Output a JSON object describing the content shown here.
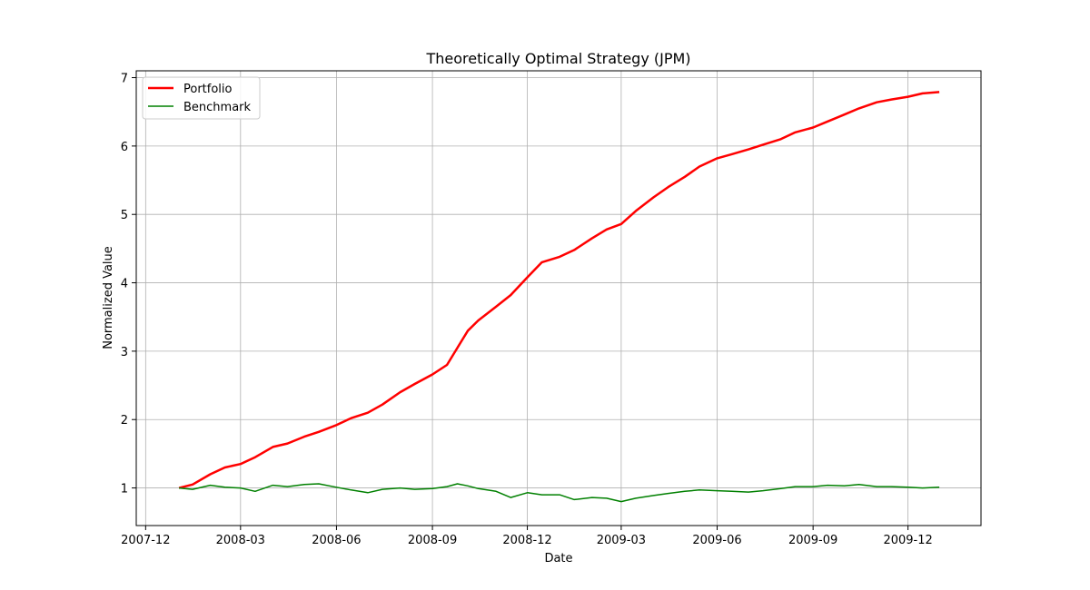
{
  "chart_data": {
    "type": "line",
    "title": "Theoretically Optimal Strategy (JPM)",
    "xlabel": "Date",
    "ylabel": "Normalized Value",
    "x_range": [
      "2007-11-22",
      "2010-02-09"
    ],
    "ylim": [
      0.45,
      7.1
    ],
    "x_ticks": [
      {
        "date": "2007-12-01",
        "label": "2007-12"
      },
      {
        "date": "2008-03-01",
        "label": "2008-03"
      },
      {
        "date": "2008-06-01",
        "label": "2008-06"
      },
      {
        "date": "2008-09-01",
        "label": "2008-09"
      },
      {
        "date": "2008-12-01",
        "label": "2008-12"
      },
      {
        "date": "2009-03-01",
        "label": "2009-03"
      },
      {
        "date": "2009-06-01",
        "label": "2009-06"
      },
      {
        "date": "2009-09-01",
        "label": "2009-09"
      },
      {
        "date": "2009-12-01",
        "label": "2009-12"
      }
    ],
    "y_ticks": [
      {
        "value": 1,
        "label": "1"
      },
      {
        "value": 2,
        "label": "2"
      },
      {
        "value": 3,
        "label": "3"
      },
      {
        "value": 4,
        "label": "4"
      },
      {
        "value": 5,
        "label": "5"
      },
      {
        "value": 6,
        "label": "6"
      },
      {
        "value": 7,
        "label": "7"
      }
    ],
    "grid": true,
    "legend_position": "top-left",
    "series": [
      {
        "name": "Portfolio",
        "color": "#ff0000",
        "points": [
          [
            "2008-01-02",
            1.0
          ],
          [
            "2008-01-15",
            1.05
          ],
          [
            "2008-02-01",
            1.2
          ],
          [
            "2008-02-15",
            1.3
          ],
          [
            "2008-03-01",
            1.35
          ],
          [
            "2008-03-15",
            1.45
          ],
          [
            "2008-04-01",
            1.6
          ],
          [
            "2008-04-15",
            1.65
          ],
          [
            "2008-05-01",
            1.75
          ],
          [
            "2008-05-15",
            1.82
          ],
          [
            "2008-06-01",
            1.92
          ],
          [
            "2008-06-15",
            2.02
          ],
          [
            "2008-07-01",
            2.1
          ],
          [
            "2008-07-15",
            2.22
          ],
          [
            "2008-08-01",
            2.4
          ],
          [
            "2008-08-15",
            2.52
          ],
          [
            "2008-09-01",
            2.66
          ],
          [
            "2008-09-15",
            2.8
          ],
          [
            "2008-09-25",
            3.05
          ],
          [
            "2008-10-05",
            3.3
          ],
          [
            "2008-10-15",
            3.45
          ],
          [
            "2008-11-01",
            3.65
          ],
          [
            "2008-11-15",
            3.82
          ],
          [
            "2008-12-01",
            4.08
          ],
          [
            "2008-12-15",
            4.3
          ],
          [
            "2009-01-01",
            4.38
          ],
          [
            "2009-01-15",
            4.48
          ],
          [
            "2009-02-01",
            4.65
          ],
          [
            "2009-02-15",
            4.78
          ],
          [
            "2009-03-01",
            4.86
          ],
          [
            "2009-03-15",
            5.05
          ],
          [
            "2009-04-01",
            5.25
          ],
          [
            "2009-04-15",
            5.4
          ],
          [
            "2009-05-01",
            5.55
          ],
          [
            "2009-05-15",
            5.7
          ],
          [
            "2009-06-01",
            5.82
          ],
          [
            "2009-06-15",
            5.88
          ],
          [
            "2009-07-01",
            5.95
          ],
          [
            "2009-07-15",
            6.02
          ],
          [
            "2009-08-01",
            6.1
          ],
          [
            "2009-08-15",
            6.2
          ],
          [
            "2009-09-01",
            6.27
          ],
          [
            "2009-09-15",
            6.36
          ],
          [
            "2009-10-01",
            6.46
          ],
          [
            "2009-10-15",
            6.55
          ],
          [
            "2009-11-01",
            6.64
          ],
          [
            "2009-11-15",
            6.68
          ],
          [
            "2009-12-01",
            6.72
          ],
          [
            "2009-12-15",
            6.77
          ],
          [
            "2009-12-31",
            6.79
          ]
        ]
      },
      {
        "name": "Benchmark",
        "color": "#008000",
        "points": [
          [
            "2008-01-02",
            1.0
          ],
          [
            "2008-01-15",
            0.98
          ],
          [
            "2008-02-01",
            1.04
          ],
          [
            "2008-02-15",
            1.01
          ],
          [
            "2008-03-01",
            1.0
          ],
          [
            "2008-03-15",
            0.95
          ],
          [
            "2008-04-01",
            1.04
          ],
          [
            "2008-04-15",
            1.02
          ],
          [
            "2008-05-01",
            1.05
          ],
          [
            "2008-05-15",
            1.06
          ],
          [
            "2008-06-01",
            1.01
          ],
          [
            "2008-06-15",
            0.97
          ],
          [
            "2008-07-01",
            0.93
          ],
          [
            "2008-07-15",
            0.98
          ],
          [
            "2008-08-01",
            1.0
          ],
          [
            "2008-08-15",
            0.98
          ],
          [
            "2008-09-01",
            0.99
          ],
          [
            "2008-09-15",
            1.02
          ],
          [
            "2008-09-25",
            1.06
          ],
          [
            "2008-10-05",
            1.03
          ],
          [
            "2008-10-15",
            0.99
          ],
          [
            "2008-11-01",
            0.95
          ],
          [
            "2008-11-15",
            0.86
          ],
          [
            "2008-12-01",
            0.93
          ],
          [
            "2008-12-15",
            0.9
          ],
          [
            "2009-01-01",
            0.9
          ],
          [
            "2009-01-15",
            0.83
          ],
          [
            "2009-02-01",
            0.86
          ],
          [
            "2009-02-15",
            0.85
          ],
          [
            "2009-03-01",
            0.8
          ],
          [
            "2009-03-15",
            0.85
          ],
          [
            "2009-04-01",
            0.89
          ],
          [
            "2009-04-15",
            0.92
          ],
          [
            "2009-05-01",
            0.95
          ],
          [
            "2009-05-15",
            0.97
          ],
          [
            "2009-06-01",
            0.96
          ],
          [
            "2009-06-15",
            0.95
          ],
          [
            "2009-07-01",
            0.94
          ],
          [
            "2009-07-15",
            0.96
          ],
          [
            "2009-08-01",
            0.99
          ],
          [
            "2009-08-15",
            1.02
          ],
          [
            "2009-09-01",
            1.02
          ],
          [
            "2009-09-15",
            1.04
          ],
          [
            "2009-10-01",
            1.03
          ],
          [
            "2009-10-15",
            1.05
          ],
          [
            "2009-11-01",
            1.02
          ],
          [
            "2009-11-15",
            1.02
          ],
          [
            "2009-12-01",
            1.01
          ],
          [
            "2009-12-15",
            1.0
          ],
          [
            "2009-12-31",
            1.01
          ]
        ]
      }
    ]
  }
}
